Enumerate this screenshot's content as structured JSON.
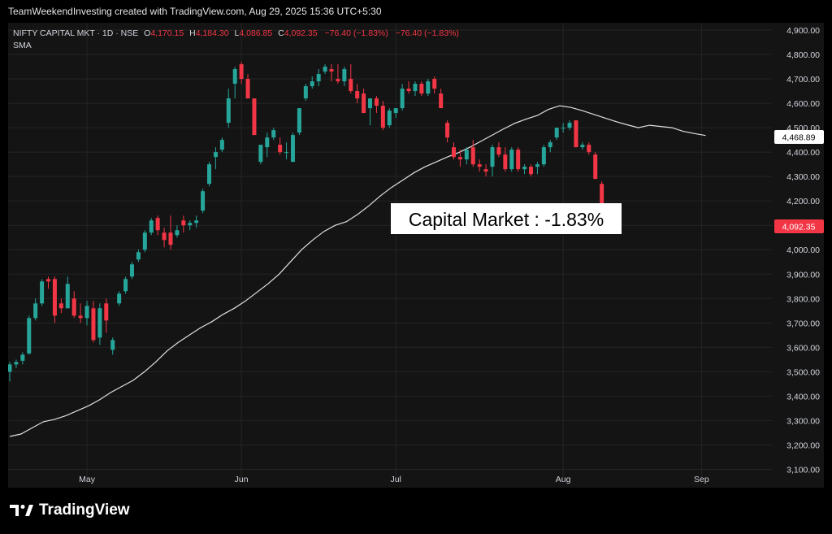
{
  "header": {
    "text": "TeamWeekendInvesting created with TradingView.com, Aug 29, 2025 15:36 UTC+5:30"
  },
  "legend": {
    "symbol": "NIFTY CAPITAL MKT · 1D · NSE",
    "o_label": "O",
    "o_value": "4,170.15",
    "h_label": "H",
    "h_value": "4,184.30",
    "l_label": "L",
    "l_value": "4,086.85",
    "c_label": "C",
    "c_value": "4,092.35",
    "change": "−76.40 (−1.83%)",
    "change2": "−76.40 (−1.83%)",
    "indicator": "SMA"
  },
  "annotation": {
    "text": "Capital Market : -1.83%"
  },
  "price_tags": {
    "sma": "4,468.89",
    "last": "4,092.35"
  },
  "footer": {
    "brand": "TradingView"
  },
  "colors": {
    "up": "#26a69a",
    "down": "#f23645",
    "sma": "#e0e0e0",
    "grid": "#242424",
    "axis_text": "#d1d4dc",
    "up_tag": "#ef5350"
  },
  "chart_data": {
    "type": "candlestick",
    "y_ticks": [
      "3,100.00",
      "3,200.00",
      "3,300.00",
      "3,400.00",
      "3,500.00",
      "3,600.00",
      "3,700.00",
      "3,800.00",
      "3,900.00",
      "4,000.00",
      "4,100.00",
      "4,200.00",
      "4,300.00",
      "4,400.00",
      "4,500.00",
      "4,600.00",
      "4,700.00",
      "4,800.00",
      "4,900.00"
    ],
    "y_tick_values": [
      3100,
      3200,
      3300,
      3400,
      3500,
      3600,
      3700,
      3800,
      3900,
      4000,
      4100,
      4200,
      4300,
      4400,
      4500,
      4600,
      4700,
      4800,
      4900
    ],
    "ylim": [
      3065,
      4930
    ],
    "x_labels": [
      {
        "label": "May",
        "index": 12
      },
      {
        "label": "Jun",
        "index": 36
      },
      {
        "label": "Jul",
        "index": 60
      },
      {
        "label": "Aug",
        "index": 86
      },
      {
        "label": "Sep",
        "index": 107.5
      }
    ],
    "candles": [
      [
        3500,
        3540,
        3460,
        3530
      ],
      [
        3530,
        3550,
        3515,
        3540
      ],
      [
        3545,
        3580,
        3530,
        3570
      ],
      [
        3575,
        3730,
        3570,
        3720
      ],
      [
        3720,
        3800,
        3710,
        3780
      ],
      [
        3780,
        3880,
        3770,
        3870
      ],
      [
        3880,
        3890,
        3840,
        3870
      ],
      [
        3880,
        3890,
        3700,
        3730
      ],
      [
        3780,
        3800,
        3740,
        3760
      ],
      [
        3760,
        3890,
        3760,
        3860
      ],
      [
        3800,
        3830,
        3720,
        3730
      ],
      [
        3730,
        3780,
        3700,
        3720
      ],
      [
        3720,
        3790,
        3690,
        3770
      ],
      [
        3760,
        3790,
        3620,
        3630
      ],
      [
        3640,
        3780,
        3610,
        3760
      ],
      [
        3780,
        3800,
        3660,
        3710
      ],
      [
        3590,
        3640,
        3570,
        3630
      ],
      [
        3780,
        3830,
        3770,
        3820
      ],
      [
        3830,
        3890,
        3820,
        3880
      ],
      [
        3890,
        3950,
        3880,
        3940
      ],
      [
        3960,
        4000,
        3950,
        3990
      ],
      [
        4000,
        4080,
        3990,
        4070
      ],
      [
        4070,
        4130,
        4060,
        4120
      ],
      [
        4130,
        4140,
        4060,
        4080
      ],
      [
        4070,
        4090,
        4010,
        4040
      ],
      [
        4070,
        4140,
        4000,
        4020
      ],
      [
        4060,
        4100,
        4050,
        4080
      ],
      [
        4120,
        4140,
        4070,
        4100
      ],
      [
        4100,
        4120,
        4080,
        4110
      ],
      [
        4110,
        4140,
        4090,
        4120
      ],
      [
        4160,
        4250,
        4150,
        4240
      ],
      [
        4270,
        4360,
        4260,
        4350
      ],
      [
        4380,
        4420,
        4330,
        4400
      ],
      [
        4410,
        4460,
        4400,
        4450
      ],
      [
        4520,
        4660,
        4500,
        4620
      ],
      [
        4680,
        4750,
        4620,
        4740
      ],
      [
        4760,
        4770,
        4680,
        4700
      ],
      [
        4700,
        4720,
        4620,
        4620
      ],
      [
        4620,
        4620,
        4470,
        4470
      ],
      [
        4360,
        4420,
        4350,
        4430
      ],
      [
        4420,
        4480,
        4380,
        4460
      ],
      [
        4460,
        4500,
        4450,
        4490
      ],
      [
        4430,
        4460,
        4390,
        4400
      ],
      [
        4400,
        4440,
        4370,
        4400
      ],
      [
        4360,
        4480,
        4360,
        4470
      ],
      [
        4480,
        4580,
        4470,
        4580
      ],
      [
        4620,
        4680,
        4610,
        4670
      ],
      [
        4670,
        4710,
        4660,
        4690
      ],
      [
        4690,
        4740,
        4670,
        4720
      ],
      [
        4730,
        4760,
        4720,
        4750
      ],
      [
        4740,
        4760,
        4690,
        4730
      ],
      [
        4700,
        4760,
        4680,
        4690
      ],
      [
        4690,
        4750,
        4670,
        4740
      ],
      [
        4700,
        4760,
        4640,
        4650
      ],
      [
        4650,
        4680,
        4600,
        4620
      ],
      [
        4640,
        4660,
        4570,
        4560
      ],
      [
        4580,
        4620,
        4510,
        4620
      ],
      [
        4620,
        4630,
        4560,
        4590
      ],
      [
        4590,
        4610,
        4490,
        4500
      ],
      [
        4510,
        4580,
        4500,
        4570
      ],
      [
        4560,
        4580,
        4540,
        4580
      ],
      [
        4580,
        4680,
        4570,
        4660
      ],
      [
        4660,
        4690,
        4640,
        4650
      ],
      [
        4650,
        4690,
        4630,
        4680
      ],
      [
        4680,
        4690,
        4630,
        4640
      ],
      [
        4640,
        4700,
        4630,
        4690
      ],
      [
        4700,
        4710,
        4640,
        4660
      ],
      [
        4640,
        4660,
        4590,
        4580
      ],
      [
        4520,
        4530,
        4440,
        4460
      ],
      [
        4420,
        4440,
        4370,
        4380
      ],
      [
        4380,
        4410,
        4340,
        4370
      ],
      [
        4370,
        4420,
        4350,
        4410
      ],
      [
        4420,
        4450,
        4340,
        4350
      ],
      [
        4350,
        4370,
        4320,
        4340
      ],
      [
        4330,
        4350,
        4300,
        4320
      ],
      [
        4340,
        4430,
        4300,
        4420
      ],
      [
        4420,
        4440,
        4380,
        4390
      ],
      [
        4390,
        4420,
        4320,
        4330
      ],
      [
        4330,
        4420,
        4320,
        4410
      ],
      [
        4410,
        4420,
        4320,
        4330
      ],
      [
        4330,
        4350,
        4310,
        4340
      ],
      [
        4340,
        4350,
        4300,
        4310
      ],
      [
        4340,
        4360,
        4310,
        4350
      ],
      [
        4350,
        4430,
        4340,
        4420
      ],
      [
        4420,
        4450,
        4400,
        4440
      ],
      [
        4460,
        4500,
        4450,
        4500
      ],
      [
        4500,
        4520,
        4480,
        4500
      ],
      [
        4500,
        4530,
        4490,
        4520
      ],
      [
        4530,
        4530,
        4420,
        4420
      ],
      [
        4420,
        4440,
        4410,
        4430
      ],
      [
        4430,
        4440,
        4390,
        4400
      ],
      [
        4390,
        4400,
        4290,
        4290
      ],
      [
        4270,
        4280,
        4170,
        4170
      ],
      [
        4170,
        4184,
        4087,
        4092
      ]
    ],
    "sma": [
      [
        0,
        3235
      ],
      [
        3,
        3245
      ],
      [
        6,
        3270
      ],
      [
        9,
        3295
      ],
      [
        12,
        3305
      ],
      [
        15,
        3320
      ],
      [
        18,
        3340
      ],
      [
        21,
        3360
      ],
      [
        24,
        3385
      ],
      [
        27,
        3415
      ],
      [
        30,
        3440
      ],
      [
        33,
        3465
      ],
      [
        36,
        3500
      ],
      [
        39,
        3540
      ],
      [
        42,
        3585
      ],
      [
        45,
        3620
      ],
      [
        48,
        3650
      ],
      [
        51,
        3680
      ],
      [
        54,
        3705
      ],
      [
        57,
        3735
      ],
      [
        60,
        3760
      ],
      [
        63,
        3790
      ],
      [
        66,
        3825
      ],
      [
        69,
        3860
      ],
      [
        72,
        3900
      ],
      [
        75,
        3950
      ],
      [
        78,
        4000
      ],
      [
        81,
        4040
      ],
      [
        84,
        4075
      ],
      [
        87,
        4100
      ],
      [
        90,
        4115
      ],
      [
        93,
        4145
      ],
      [
        96,
        4180
      ],
      [
        99,
        4220
      ],
      [
        102,
        4255
      ],
      [
        105,
        4285
      ],
      [
        108,
        4315
      ],
      [
        111,
        4340
      ],
      [
        114,
        4360
      ],
      [
        117,
        4380
      ],
      [
        120,
        4398
      ],
      [
        123,
        4420
      ],
      [
        126,
        4445
      ],
      [
        129,
        4470
      ],
      [
        132,
        4495
      ],
      [
        135,
        4518
      ],
      [
        138,
        4535
      ],
      [
        141,
        4550
      ],
      [
        144,
        4575
      ],
      [
        147,
        4590
      ],
      [
        150,
        4583
      ],
      [
        153,
        4570
      ],
      [
        156,
        4555
      ],
      [
        159,
        4540
      ],
      [
        162,
        4525
      ],
      [
        165,
        4512
      ],
      [
        168,
        4500
      ],
      [
        171,
        4510
      ],
      [
        174,
        4505
      ],
      [
        177,
        4500
      ],
      [
        180,
        4485
      ],
      [
        183,
        4476
      ],
      [
        186,
        4468
      ]
    ]
  }
}
